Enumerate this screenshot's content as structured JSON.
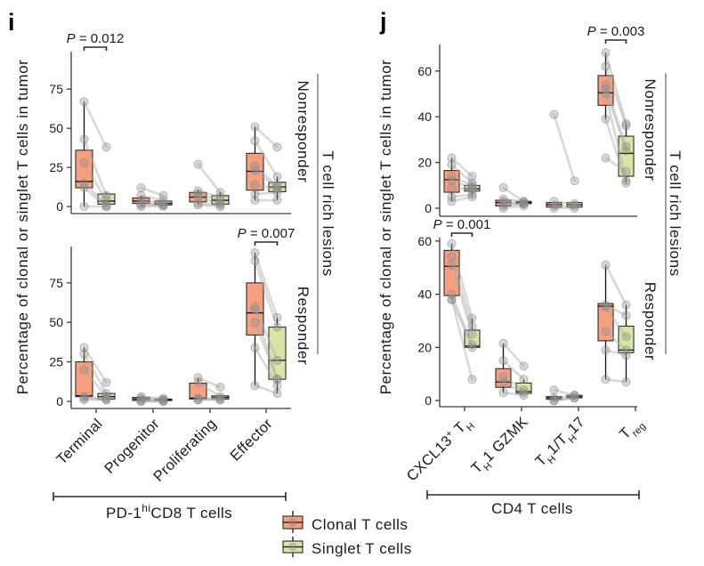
{
  "figure": {
    "panel_i": {
      "letter": "i",
      "ylabel": "Percentage of clonal or singlet T cells in tumor",
      "facets": [
        "Nonresponder",
        "Responder"
      ],
      "strata_label": "T cell rich lesions",
      "group_label": {
        "pre": "PD-1",
        "sup": "hi",
        "post": "CD8 T cells"
      }
    },
    "panel_j": {
      "letter": "j",
      "ylabel": "Percentage of clonal or singlet T cells in tumor",
      "facets": [
        "Nonresponder",
        "Responder"
      ],
      "strata_label": "T cell rich lesions",
      "group_label": "CD4 T cells"
    }
  },
  "legend": [
    {
      "label": "Clonal T cells",
      "color": "#F6A07F"
    },
    {
      "label": "Singlet T cells",
      "color": "#D5E6A6"
    }
  ],
  "chart_data": [
    {
      "panel": "i",
      "facet": "Nonresponder",
      "type": "box",
      "xlabel": "PD-1hiCD8 T cells",
      "ylabel": "Percentage of clonal or singlet T cells in tumor",
      "categories": [
        "Terminal",
        "Progenitor",
        "Proliferating",
        "Effector"
      ],
      "ylim": [
        -4.5,
        99
      ],
      "yticks": [
        0,
        25,
        50,
        75
      ],
      "grid": false,
      "show_x_labels": false,
      "series": [
        {
          "name": "Clonal T cells",
          "color": "#F6A07F",
          "boxes": [
            {
              "min": 0,
              "q1": 12,
              "median": 16,
              "q3": 36,
              "max": 67,
              "points": [
                67,
                43,
                28,
                15,
                12,
                0
              ]
            },
            {
              "min": 0,
              "q1": 2,
              "median": 3.5,
              "q3": 5.5,
              "max": 7,
              "points": [
                12,
                7,
                4,
                2,
                1,
                0
              ]
            },
            {
              "min": 1,
              "q1": 3,
              "median": 6,
              "q3": 9,
              "max": 11,
              "points": [
                27,
                10,
                8,
                6,
                2,
                1
              ]
            },
            {
              "min": 4,
              "q1": 10.5,
              "median": 22.5,
              "q3": 34,
              "max": 51,
              "points": [
                51,
                42,
                26,
                23,
                14,
                8,
                4
              ]
            }
          ]
        },
        {
          "name": "Singlet T cells",
          "color": "#D5E6A6",
          "boxes": [
            {
              "min": 0,
              "q1": 1.5,
              "median": 3.5,
              "q3": 8,
              "max": 9,
              "points": [
                38,
                7,
                4,
                1,
                0,
                0
              ]
            },
            {
              "min": 0,
              "q1": 1,
              "median": 2,
              "q3": 3.5,
              "max": 4,
              "points": [
                7,
                4,
                2,
                1,
                1,
                0
              ]
            },
            {
              "min": 0,
              "q1": 1.5,
              "median": 4,
              "q3": 7,
              "max": 9.5,
              "points": [
                9,
                6,
                4,
                2,
                1,
                0
              ]
            },
            {
              "min": 4,
              "q1": 9.5,
              "median": 12.5,
              "q3": 15.5,
              "max": 19,
              "points": [
                38,
                19,
                13,
                12,
                11,
                9,
                4
              ]
            }
          ]
        }
      ],
      "annotations": [
        {
          "category": "Terminal",
          "p_symbol": "P",
          "text": " = 0.012"
        }
      ]
    },
    {
      "panel": "i",
      "facet": "Responder",
      "type": "box",
      "xlabel": "PD-1hiCD8 T cells",
      "ylabel": "Percentage of clonal or singlet T cells in tumor",
      "categories": [
        "Terminal",
        "Progenitor",
        "Proliferating",
        "Effector"
      ],
      "category_label_parts": [
        [
          {
            "t": "Terminal",
            "s": ""
          }
        ],
        [
          {
            "t": "Progenitor",
            "s": ""
          }
        ],
        [
          {
            "t": "Proliferating",
            "s": ""
          }
        ],
        [
          {
            "t": "Effector",
            "s": ""
          }
        ]
      ],
      "ylim": [
        -4.5,
        98
      ],
      "yticks": [
        0,
        25,
        50,
        75
      ],
      "grid": false,
      "show_x_labels": true,
      "series": [
        {
          "name": "Clonal T cells",
          "color": "#F6A07F",
          "boxes": [
            {
              "min": 1,
              "q1": 3,
              "median": 3.5,
              "q3": 25,
              "max": 34,
              "points": [
                34,
                30,
                20,
                3,
                2,
                1
              ]
            },
            {
              "min": 0,
              "q1": 0.5,
              "median": 1.5,
              "q3": 2.5,
              "max": 3,
              "points": [
                3,
                2,
                1,
                0,
                0
              ]
            },
            {
              "min": 1,
              "q1": 1.5,
              "median": 2,
              "q3": 11.5,
              "max": 15,
              "points": [
                15,
                12,
                2,
                1,
                1
              ]
            },
            {
              "min": 10,
              "q1": 42,
              "median": 56,
              "q3": 75,
              "max": 94,
              "points": [
                94,
                89,
                60,
                58,
                50,
                34,
                10
              ]
            }
          ]
        },
        {
          "name": "Singlet T cells",
          "color": "#D5E6A6",
          "boxes": [
            {
              "min": 1,
              "q1": 1.5,
              "median": 3,
              "q3": 5,
              "max": 6,
              "points": [
                12,
                5,
                3,
                2,
                1,
                1
              ]
            },
            {
              "min": 0,
              "q1": 0.5,
              "median": 1,
              "q3": 1.5,
              "max": 2,
              "points": [
                2,
                1,
                1,
                0,
                0
              ]
            },
            {
              "min": 1,
              "q1": 1.5,
              "median": 2.5,
              "q3": 3.5,
              "max": 4,
              "points": [
                9,
                3,
                2,
                1,
                1
              ]
            },
            {
              "min": 5,
              "q1": 14,
              "median": 26,
              "q3": 47,
              "max": 53,
              "points": [
                53,
                47,
                26,
                14,
                14,
                10,
                5
              ]
            }
          ]
        }
      ],
      "annotations": [
        {
          "category": "Effector",
          "p_symbol": "P",
          "text": " = 0.007"
        }
      ]
    },
    {
      "panel": "j",
      "facet": "Nonresponder",
      "type": "box",
      "xlabel": "CD4 T cells",
      "ylabel": "Percentage of clonal or singlet T cells in tumor",
      "categories": [
        "CXCL13+ TH",
        "TH1 GZMK",
        "TH1/TH17",
        "Treg"
      ],
      "ylim": [
        -3.5,
        71.6
      ],
      "yticks": [
        0,
        20,
        40,
        60
      ],
      "grid": false,
      "show_x_labels": false,
      "series": [
        {
          "name": "Clonal T cells",
          "color": "#F6A07F",
          "boxes": [
            {
              "min": 3,
              "q1": 7,
              "median": 12.5,
              "q3": 16.5,
              "max": 22,
              "points": [
                22,
                19,
                14,
                12,
                9,
                5,
                3
              ]
            },
            {
              "min": 0.5,
              "q1": 1,
              "median": 2.5,
              "q3": 3.5,
              "max": 4,
              "points": [
                9,
                4,
                3,
                2,
                1,
                0
              ]
            },
            {
              "min": 0,
              "q1": 0.5,
              "median": 1.5,
              "q3": 2.5,
              "max": 3,
              "points": [
                41,
                3,
                1,
                0
              ]
            },
            {
              "min": 39,
              "q1": 45,
              "median": 50.5,
              "q3": 58,
              "max": 68,
              "points": [
                68,
                62,
                54,
                52,
                50,
                39,
                22
              ]
            }
          ]
        },
        {
          "name": "Singlet T cells",
          "color": "#D5E6A6",
          "boxes": [
            {
              "min": 5,
              "q1": 7.5,
              "median": 8.5,
              "q3": 10,
              "max": 11,
              "points": [
                14,
                11,
                10,
                9,
                8,
                6,
                5
              ]
            },
            {
              "min": 2,
              "q1": 2,
              "median": 2.5,
              "q3": 3,
              "max": 3,
              "points": [
                3,
                3,
                2,
                2,
                2,
                1
              ]
            },
            {
              "min": 0,
              "q1": 0.5,
              "median": 1.5,
              "q3": 2.5,
              "max": 3,
              "points": [
                12,
                2,
                1,
                0
              ]
            },
            {
              "min": 11,
              "q1": 14,
              "median": 24,
              "q3": 31.5,
              "max": 37,
              "points": [
                37,
                36,
                27,
                25,
                12,
                11,
                16
              ]
            }
          ]
        }
      ],
      "annotations": [
        {
          "category": "Treg",
          "p_symbol": "P",
          "text": " = 0.003"
        }
      ]
    },
    {
      "panel": "j",
      "facet": "Responder",
      "type": "box",
      "xlabel": "CD4 T cells",
      "ylabel": "Percentage of clonal or singlet T cells in tumor",
      "categories": [
        "CXCL13+ TH",
        "TH1 GZMK",
        "TH1/TH17",
        "Treg"
      ],
      "category_label_parts": [
        [
          {
            "t": "CXCL13",
            "s": ""
          },
          {
            "t": "+",
            "s": "sup"
          },
          {
            "t": " T",
            "s": ""
          },
          {
            "t": "H",
            "s": "sub"
          }
        ],
        [
          {
            "t": "T",
            "s": ""
          },
          {
            "t": "H",
            "s": "sub"
          },
          {
            "t": "1 GZMK",
            "s": ""
          }
        ],
        [
          {
            "t": "T",
            "s": ""
          },
          {
            "t": "H",
            "s": "sub"
          },
          {
            "t": "1/T",
            "s": ""
          },
          {
            "t": "H",
            "s": "sub"
          },
          {
            "t": "17",
            "s": ""
          }
        ],
        [
          {
            "t": "T",
            "s": ""
          },
          {
            "t": "reg",
            "s": "sub"
          }
        ]
      ],
      "ylim": [
        -2.3,
        61.3
      ],
      "yticks": [
        0,
        20,
        40,
        60
      ],
      "grid": false,
      "show_x_labels": true,
      "series": [
        {
          "name": "Clonal T cells",
          "color": "#F6A07F",
          "boxes": [
            {
              "min": 38,
              "q1": 39.5,
              "median": 50.5,
              "q3": 56.5,
              "max": 59,
              "points": [
                59,
                54,
                51,
                40,
                38,
                38
              ]
            },
            {
              "min": 3,
              "q1": 5,
              "median": 7,
              "q3": 12,
              "max": 21.5,
              "points": [
                21.5,
                15,
                9,
                7,
                3
              ]
            },
            {
              "min": 0,
              "q1": 0.5,
              "median": 1,
              "q3": 1.5,
              "max": 2,
              "points": [
                4,
                1,
                0,
                0
              ]
            },
            {
              "min": 8,
              "q1": 22.5,
              "median": 35.5,
              "q3": 36.5,
              "max": 51,
              "points": [
                51,
                36,
                35,
                26,
                19,
                8
              ]
            }
          ]
        },
        {
          "name": "Singlet T cells",
          "color": "#D5E6A6",
          "boxes": [
            {
              "min": 19.5,
              "q1": 20,
              "median": 20.5,
              "q3": 26.5,
              "max": 31,
              "points": [
                31,
                28,
                25,
                21,
                20,
                8
              ]
            },
            {
              "min": 2.5,
              "q1": 2.7,
              "median": 3.4,
              "q3": 6.6,
              "max": 8,
              "points": [
                13,
                8,
                4,
                3,
                2
              ]
            },
            {
              "min": 1,
              "q1": 1,
              "median": 1.5,
              "q3": 2,
              "max": 2,
              "points": [
                2,
                2,
                1,
                1
              ]
            },
            {
              "min": 7,
              "q1": 18,
              "median": 19,
              "q3": 28,
              "max": 36,
              "points": [
                36,
                32,
                24,
                19,
                17,
                7
              ]
            }
          ]
        }
      ],
      "annotations": [
        {
          "category": "CXCL13+ TH",
          "p_symbol": "P",
          "text": " = 0.001"
        }
      ]
    }
  ]
}
